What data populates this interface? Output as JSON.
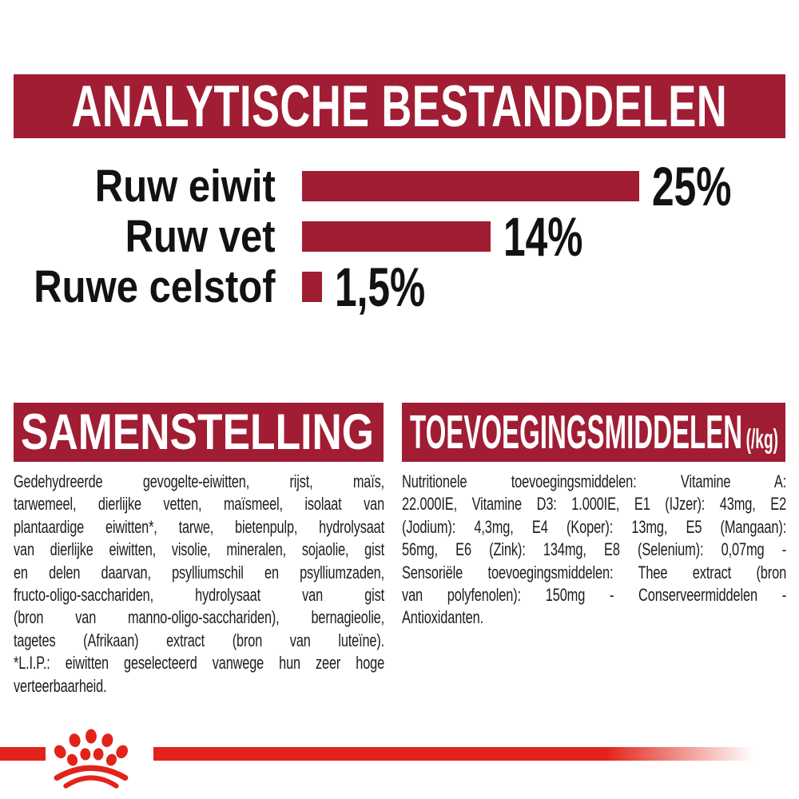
{
  "colors": {
    "maroon": "#A01D33",
    "bright_red": "#E2231A",
    "text_black": "#1d1d1b",
    "white": "#ffffff"
  },
  "header": {
    "title": "ANALYTISCHE BESTANDDELEN"
  },
  "chart_data": {
    "type": "bar",
    "orientation": "horizontal",
    "title": "ANALYTISCHE BESTANDDELEN",
    "categories": [
      "Ruw eiwit",
      "Ruw vet",
      "Ruwe celstof"
    ],
    "values": [
      25,
      14,
      1.5
    ],
    "value_labels": [
      "25%",
      "14%",
      "1,5%"
    ],
    "unit": "%",
    "xlim": [
      0,
      25
    ],
    "bar_color": "#A01D33",
    "grid": false,
    "legend": false
  },
  "sections": {
    "samenstelling": {
      "title": "SAMENSTELLING",
      "lines": [
        {
          "text": "Gedehydreerde gevogelte-eiwitten, rijst, maïs,",
          "justify": true
        },
        {
          "text": "tarwemeel, dierlijke vetten, maïsmeel, isolaat van",
          "justify": true
        },
        {
          "text": "plantaardige eiwitten*, tarwe, bietenpulp, hydrolysaat",
          "justify": true
        },
        {
          "text": "van dierlijke eiwitten, visolie, mineralen, sojaolie, gist",
          "justify": true
        },
        {
          "text": "en delen daarvan, psylliumschil en psylliumzaden,",
          "justify": true
        },
        {
          "text": "fructo-oligo-sacchariden, hydrolysaat van gist",
          "justify": true
        },
        {
          "text": "(bron van manno-oligo-sacchariden), bernagieolie,",
          "justify": true
        },
        {
          "text": "tagetes (Afrikaan) extract (bron van luteïne).",
          "justify": true
        },
        {
          "text": "*L.I.P.: eiwitten geselecteerd vanwege hun zeer hoge",
          "justify": true
        },
        {
          "text": "verteerbaarheid.",
          "justify": false
        }
      ]
    },
    "toevoegingsmiddelen": {
      "title": "TOEVOEGINGSMIDDELEN",
      "unit": "(/kg)",
      "lines": [
        {
          "text": "Nutritionele toevoegingsmiddelen: Vitamine A:",
          "justify": true
        },
        {
          "text": "22.000IE, Vitamine D3: 1.000IE, E1 (IJzer): 43mg, E2",
          "justify": true
        },
        {
          "text": "(Jodium): 4,3mg, E4 (Koper): 13mg, E5 (Mangaan):",
          "justify": true
        },
        {
          "text": "56mg, E6 (Zink): 134mg, E8 (Selenium): 0,07mg -",
          "justify": true
        },
        {
          "text": "Sensoriële toevoegingsmiddelen: Thee extract (bron",
          "justify": true
        },
        {
          "text": "van polyfenolen): 150mg - Conserveermiddelen -",
          "justify": true
        },
        {
          "text": "Antioxidanten.",
          "justify": false
        }
      ]
    }
  },
  "footer": {
    "logo_icon": "royal-canin-crown-icon",
    "logo_color": "#E2231A",
    "strip_color": "#E2231A"
  }
}
